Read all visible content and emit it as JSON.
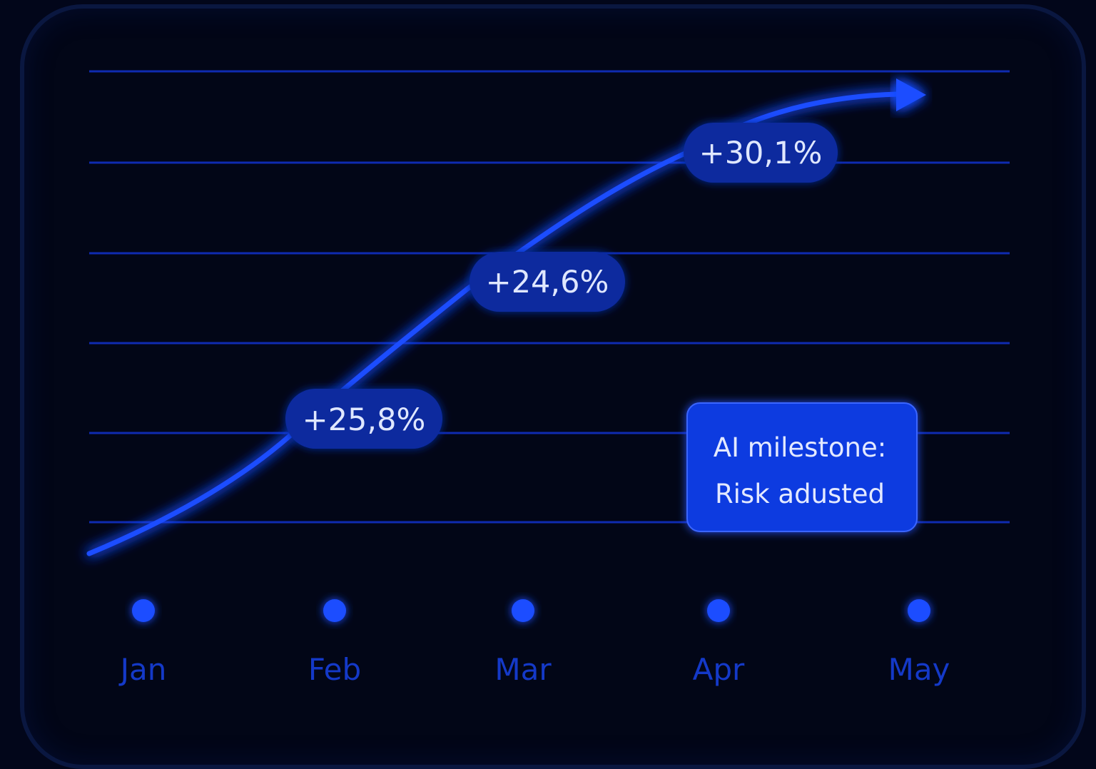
{
  "chart_data": {
    "type": "line",
    "categories": [
      "Jan",
      "Feb",
      "Mar",
      "Apr",
      "May"
    ],
    "series": [
      {
        "values": [
          0,
          25.8,
          24.6,
          30.1,
          32
        ]
      }
    ],
    "point_labels": [
      {
        "category": "Feb",
        "text": "+25,8%"
      },
      {
        "category": "Mar",
        "text": "+24,6%"
      },
      {
        "category": "Apr",
        "text": "+30,1%"
      }
    ],
    "annotation": {
      "lines": [
        "AI milestone:",
        "Risk adusted"
      ]
    },
    "grid": true,
    "trend_arrow": true
  },
  "colors": {
    "background": "#020617",
    "line": "#1a4dff",
    "grid": "#0f2bb0",
    "pill": "#0a2a9e",
    "annotation_box": "#0c3ae0",
    "month_label": "#1439c8"
  }
}
